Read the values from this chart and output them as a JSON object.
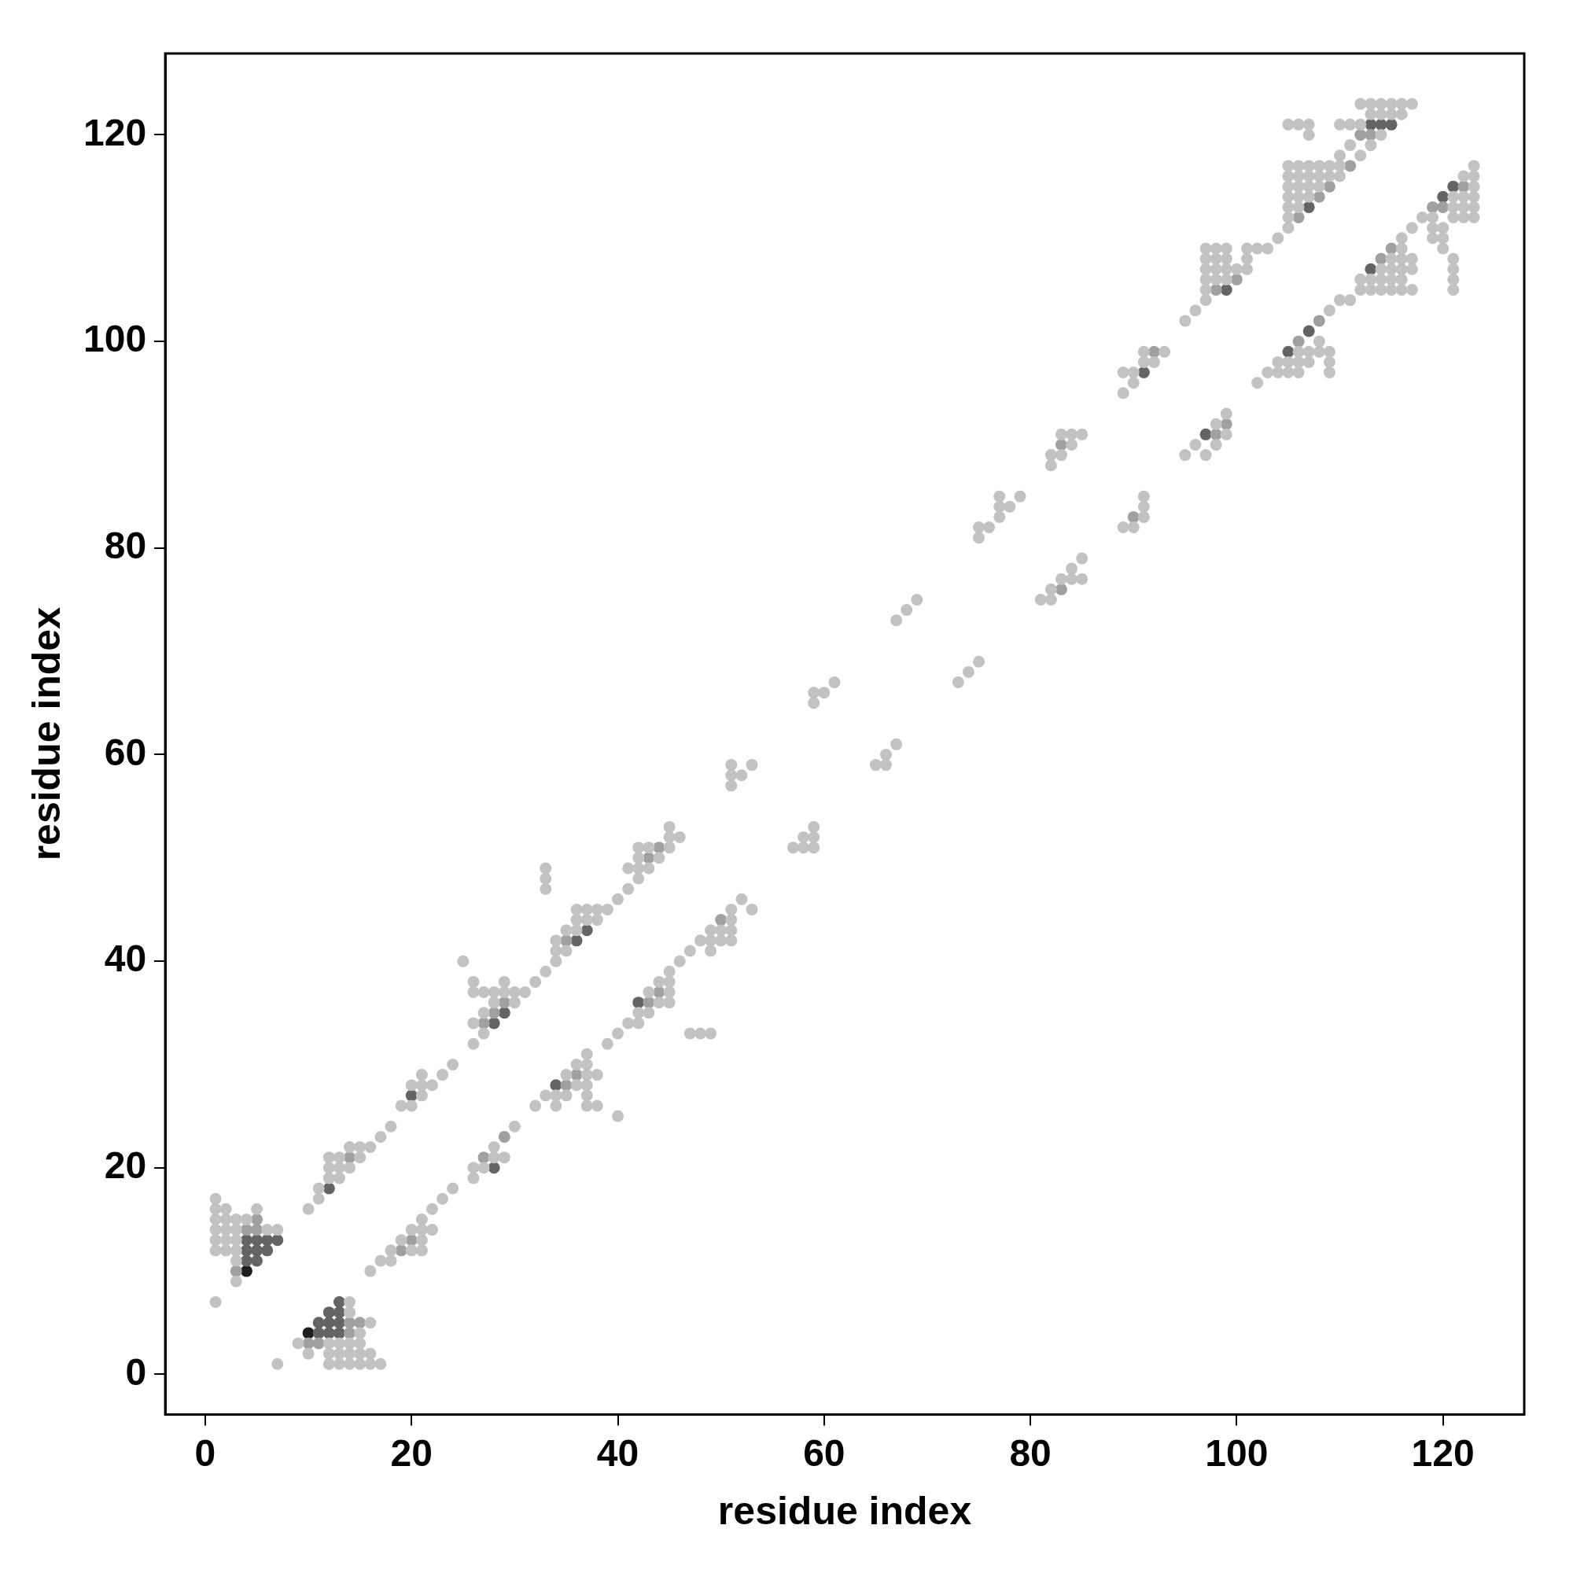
{
  "chart_data": {
    "type": "scatter",
    "xlabel": "residue index",
    "ylabel": "residue index",
    "xlim": [
      -3.88,
      127.88
    ],
    "ylim": [
      -3.88,
      127.88
    ],
    "xticks": [
      0,
      20,
      40,
      60,
      80,
      100,
      120
    ],
    "yticks": [
      0,
      20,
      40,
      60,
      80,
      100,
      120
    ],
    "grid": false,
    "legend": false,
    "marker": "circle",
    "series": [
      {
        "color": "#c2c2c2",
        "x": [
          1,
          1,
          1,
          1,
          1,
          1,
          1,
          2,
          2,
          2,
          2,
          2,
          3,
          3,
          3,
          3,
          3,
          3,
          4,
          5,
          6,
          7,
          7,
          9,
          10,
          12,
          12,
          12,
          13,
          13,
          13,
          14,
          14,
          14,
          14,
          14,
          15,
          15,
          15,
          15,
          16,
          16,
          16,
          17,
          10,
          11,
          11,
          12,
          12,
          12,
          13,
          13,
          13,
          14,
          14,
          15,
          15,
          16,
          17,
          18,
          19,
          20,
          20,
          21,
          21,
          21,
          22,
          23,
          24,
          25,
          26,
          26,
          26,
          26,
          27,
          27,
          27,
          28,
          28,
          29,
          29,
          30,
          30,
          31,
          32,
          33,
          33,
          33,
          33,
          34,
          34,
          34,
          35,
          35,
          36,
          36,
          36,
          37,
          37,
          38,
          38,
          39,
          40,
          41,
          41,
          42,
          42,
          42,
          42,
          43,
          43,
          44,
          45,
          45,
          45,
          46,
          51,
          51,
          51,
          52,
          53,
          59,
          59,
          60,
          61,
          67,
          68,
          69,
          75,
          75,
          76,
          77,
          77,
          77,
          78,
          79,
          82,
          82,
          83,
          83,
          84,
          84,
          85,
          89,
          89,
          90,
          90,
          91,
          91,
          92,
          93,
          95,
          96,
          97,
          97,
          97,
          97,
          97,
          97,
          98,
          98,
          98,
          98,
          99,
          99,
          99,
          99,
          100,
          101,
          101,
          101,
          102,
          103,
          104,
          105,
          105,
          105,
          105,
          105,
          105,
          105,
          106,
          106,
          106,
          106,
          106,
          107,
          107,
          107,
          107,
          108,
          108,
          108,
          109,
          109,
          110,
          110,
          110,
          111,
          112,
          112,
          112,
          113,
          113,
          113,
          114,
          114,
          114,
          115,
          115,
          116,
          116,
          117,
          105,
          106,
          107,
          107,
          110,
          111,
          16,
          17,
          18,
          18,
          19,
          20,
          20,
          21,
          21,
          21,
          21,
          22,
          22,
          23,
          24,
          26,
          26,
          27,
          28,
          28,
          29,
          30,
          32,
          33,
          34,
          34,
          35,
          35,
          36,
          36,
          37,
          37,
          37,
          37,
          37,
          37,
          38,
          38,
          39,
          40,
          40,
          41,
          42,
          42,
          43,
          43,
          44,
          44,
          45,
          45,
          45,
          45,
          46,
          48,
          47,
          47,
          48,
          49,
          49,
          49,
          49,
          50,
          50,
          51,
          51,
          51,
          51,
          52,
          53,
          57,
          58,
          58,
          59,
          59,
          59,
          65,
          66,
          66,
          67,
          73,
          74,
          75,
          81,
          82,
          82,
          83,
          84,
          84,
          85,
          85,
          89,
          90,
          91,
          91,
          91,
          95,
          96,
          97,
          98,
          98,
          99,
          99,
          102,
          103,
          104,
          104,
          105,
          105,
          106,
          106,
          106,
          107,
          107,
          108,
          108,
          109,
          109,
          109,
          109,
          110,
          111,
          112,
          112,
          113,
          113,
          114,
          114,
          114,
          115,
          115,
          115,
          115,
          116,
          116,
          116,
          116,
          116,
          116,
          117,
          117,
          117,
          117,
          118,
          119,
          119,
          119,
          120,
          120,
          120,
          121,
          121,
          121,
          121,
          121,
          121,
          121,
          122,
          122,
          122,
          122,
          123,
          123,
          123,
          123,
          123,
          123
        ],
        "values": [
          7,
          12,
          13,
          14,
          15,
          16,
          17,
          12,
          13,
          14,
          15,
          16,
          9,
          11,
          12,
          13,
          14,
          15,
          15,
          16,
          14,
          14,
          1,
          3,
          2,
          1,
          2,
          3,
          1,
          2,
          3,
          1,
          2,
          3,
          6,
          7,
          1,
          2,
          3,
          4,
          1,
          2,
          5,
          1,
          16,
          17,
          18,
          19,
          20,
          21,
          19,
          20,
          21,
          20,
          22,
          21,
          22,
          22,
          23,
          24,
          26,
          26,
          28,
          27,
          28,
          29,
          28,
          29,
          30,
          40,
          32,
          34,
          37,
          38,
          33,
          35,
          37,
          36,
          37,
          37,
          38,
          36,
          37,
          37,
          38,
          39,
          47,
          48,
          49,
          40,
          41,
          42,
          41,
          43,
          43,
          44,
          45,
          44,
          45,
          44,
          45,
          45,
          46,
          47,
          49,
          48,
          49,
          50,
          51,
          49,
          51,
          50,
          51,
          52,
          53,
          52,
          57,
          58,
          59,
          58,
          59,
          65,
          66,
          66,
          67,
          73,
          74,
          75,
          81,
          82,
          82,
          83,
          84,
          85,
          84,
          85,
          88,
          89,
          89,
          91,
          90,
          91,
          91,
          95,
          97,
          96,
          97,
          98,
          99,
          98,
          99,
          102,
          103,
          104,
          105,
          106,
          107,
          108,
          109,
          106,
          107,
          108,
          109,
          106,
          107,
          108,
          109,
          107,
          107,
          108,
          109,
          109,
          109,
          110,
          111,
          112,
          113,
          114,
          115,
          116,
          117,
          113,
          114,
          115,
          116,
          117,
          114,
          115,
          116,
          117,
          115,
          116,
          117,
          116,
          117,
          116,
          117,
          118,
          119,
          118,
          121,
          123,
          119,
          122,
          123,
          120,
          122,
          123,
          122,
          123,
          122,
          123,
          123,
          121,
          121,
          120,
          121,
          121,
          121,
          10,
          11,
          11,
          12,
          13,
          12,
          14,
          12,
          13,
          14,
          15,
          14,
          16,
          17,
          18,
          19,
          20,
          20,
          21,
          22,
          21,
          24,
          26,
          27,
          26,
          27,
          27,
          29,
          28,
          30,
          26,
          27,
          28,
          29,
          30,
          31,
          26,
          29,
          32,
          25,
          33,
          34,
          34,
          35,
          35,
          37,
          36,
          38,
          36,
          37,
          38,
          39,
          40,
          33,
          41,
          33,
          42,
          42,
          43,
          41,
          33,
          42,
          43,
          42,
          43,
          44,
          45,
          46,
          45,
          51,
          51,
          52,
          51,
          52,
          53,
          59,
          59,
          60,
          61,
          67,
          68,
          69,
          75,
          75,
          76,
          77,
          77,
          78,
          77,
          79,
          82,
          82,
          83,
          84,
          85,
          89,
          90,
          89,
          90,
          92,
          91,
          93,
          96,
          97,
          97,
          98,
          97,
          98,
          97,
          98,
          99,
          98,
          99,
          99,
          100,
          97,
          98,
          99,
          103,
          104,
          104,
          105,
          106,
          105,
          106,
          105,
          106,
          107,
          105,
          106,
          107,
          108,
          105,
          106,
          107,
          108,
          109,
          110,
          105,
          107,
          108,
          111,
          112,
          110,
          111,
          112,
          109,
          110,
          111,
          105,
          106,
          107,
          108,
          112,
          113,
          114,
          112,
          113,
          114,
          116,
          112,
          113,
          114,
          115,
          116,
          117
        ]
      },
      {
        "color": "#a0a0a0",
        "x": [
          3,
          4,
          5,
          5,
          10,
          11,
          14,
          14,
          15,
          14,
          27,
          28,
          29,
          35,
          43,
          44,
          83,
          92,
          98,
          100,
          106,
          108,
          109,
          111,
          112,
          113,
          19,
          20,
          27,
          29,
          35,
          36,
          43,
          44,
          50,
          83,
          90,
          98,
          99,
          106,
          108,
          114,
          115,
          119,
          120,
          122
        ],
        "values": [
          10,
          14,
          14,
          15,
          3,
          3,
          4,
          5,
          5,
          21,
          34,
          35,
          36,
          42,
          50,
          51,
          90,
          99,
          105,
          106,
          112,
          114,
          115,
          117,
          120,
          120,
          12,
          13,
          21,
          23,
          28,
          29,
          36,
          37,
          44,
          76,
          83,
          91,
          92,
          100,
          102,
          108,
          109,
          113,
          113,
          115
        ]
      },
      {
        "color": "#646464",
        "x": [
          4,
          4,
          5,
          5,
          5,
          6,
          6,
          7,
          4,
          11,
          11,
          12,
          12,
          12,
          13,
          13,
          13,
          13,
          12,
          20,
          28,
          29,
          36,
          37,
          91,
          99,
          107,
          113,
          114,
          115,
          34,
          42,
          97,
          113,
          121,
          120,
          105,
          107,
          28
        ],
        "values": [
          11,
          12,
          11,
          12,
          13,
          12,
          13,
          13,
          13,
          4,
          5,
          4,
          5,
          6,
          5,
          6,
          7,
          4,
          18,
          27,
          34,
          35,
          42,
          43,
          97,
          105,
          113,
          121,
          121,
          121,
          28,
          36,
          91,
          107,
          115,
          114,
          99,
          101,
          20
        ]
      },
      {
        "color": "#1e1e1e",
        "x": [
          4,
          10
        ],
        "values": [
          10,
          4
        ]
      }
    ]
  }
}
